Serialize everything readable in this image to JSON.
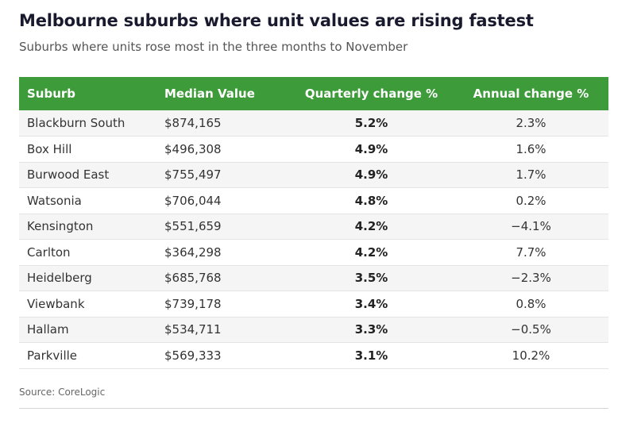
{
  "chart_data": {
    "type": "table",
    "title": "Melbourne suburbs where unit values are rising fastest",
    "subtitle": "Suburbs where units rose most in the three months to November",
    "columns": [
      "Suburb",
      "Median Value",
      "Quarterly change %",
      "Annual change %"
    ],
    "rows": [
      [
        "Blackburn South",
        "$874,165",
        "5.2%",
        "2.3%"
      ],
      [
        "Box Hill",
        "$496,308",
        "4.9%",
        "1.6%"
      ],
      [
        "Burwood East",
        "$755,497",
        "4.9%",
        "1.7%"
      ],
      [
        "Watsonia",
        "$706,044",
        "4.8%",
        "0.2%"
      ],
      [
        "Kensington",
        "$551,659",
        "4.2%",
        "−4.1%"
      ],
      [
        "Carlton",
        "$364,298",
        "4.2%",
        "7.7%"
      ],
      [
        "Heidelberg",
        "$685,768",
        "3.5%",
        "−2.3%"
      ],
      [
        "Viewbank",
        "$739,178",
        "3.4%",
        "0.8%"
      ],
      [
        "Hallam",
        "$534,711",
        "3.3%",
        "−0.5%"
      ],
      [
        "Parkville",
        "$569,333",
        "3.1%",
        "10.2%"
      ]
    ],
    "source": "Source: CoreLogic",
    "header_color": "#3d9b3a"
  }
}
